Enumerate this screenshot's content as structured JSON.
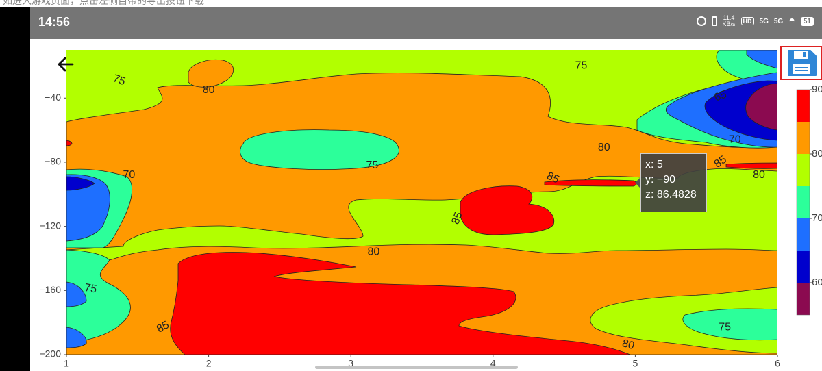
{
  "caption": "如进入游戏页面，点击左侧自带的导出按钮下载",
  "status_bar": {
    "time": "14:56",
    "net_speed_top": "11.4",
    "net_speed_bottom": "KB/s",
    "hd_label": "HD",
    "signal_1": "5G",
    "signal_2": "5G",
    "battery": "51"
  },
  "icons": {
    "back": "arrow-left-icon",
    "save": "floppy-disk-icon"
  },
  "tooltip": {
    "x_line": "x: 5",
    "y_line": "y: −90",
    "z_line": "z: 86.4828"
  },
  "chart_data": {
    "type": "contour",
    "x_range": [
      1,
      6
    ],
    "y_range": [
      -200,
      -10
    ],
    "x_ticks": [
      1,
      2,
      3,
      4,
      5,
      6
    ],
    "x_tick_labels": [
      "1",
      "2",
      "3",
      "4",
      "5",
      "6"
    ],
    "y_ticks": [
      -40,
      -80,
      -120,
      -160,
      -200
    ],
    "y_tick_labels": [
      "−40",
      "−80",
      "−120",
      "−160",
      "−200"
    ],
    "colorbar": {
      "levels": [
        55,
        60,
        65,
        70,
        75,
        80,
        85,
        90
      ],
      "colors": [
        "#8b0a50",
        "#0000cd",
        "#1e6fff",
        "#2cff9a",
        "#b2ff00",
        "#ff9900",
        "#ff0000"
      ],
      "tick_labels": [
        "90",
        "80",
        "70",
        "60"
      ],
      "tick_values": [
        90,
        80,
        70,
        60
      ]
    },
    "contour_labels": [
      {
        "text": "75",
        "x": 1.37,
        "y": -29,
        "rot": 20
      },
      {
        "text": "80",
        "x": 2.0,
        "y": -35,
        "rot": 0
      },
      {
        "text": "75",
        "x": 4.62,
        "y": -20,
        "rot": 0
      },
      {
        "text": "65",
        "x": 5.6,
        "y": -39,
        "rot": -20
      },
      {
        "text": "70",
        "x": 5.7,
        "y": -66,
        "rot": 0
      },
      {
        "text": "80",
        "x": 4.78,
        "y": -71,
        "rot": 0
      },
      {
        "text": "75",
        "x": 3.15,
        "y": -82,
        "rot": 0
      },
      {
        "text": "70",
        "x": 1.44,
        "y": -88,
        "rot": 0
      },
      {
        "text": "85",
        "x": 4.42,
        "y": -90,
        "rot": 25
      },
      {
        "text": "85",
        "x": 5.6,
        "y": -80,
        "rot": -35
      },
      {
        "text": "80",
        "x": 5.87,
        "y": -88,
        "rot": 0
      },
      {
        "text": "85",
        "x": 3.75,
        "y": -115,
        "rot": -70
      },
      {
        "text": "80",
        "x": 3.16,
        "y": -136,
        "rot": 0
      },
      {
        "text": "75",
        "x": 1.17,
        "y": -159,
        "rot": 10
      },
      {
        "text": "85",
        "x": 1.68,
        "y": -183,
        "rot": -30
      },
      {
        "text": "80",
        "x": 4.95,
        "y": -194,
        "rot": 15
      },
      {
        "text": "75",
        "x": 5.63,
        "y": -183,
        "rot": 0
      }
    ]
  }
}
